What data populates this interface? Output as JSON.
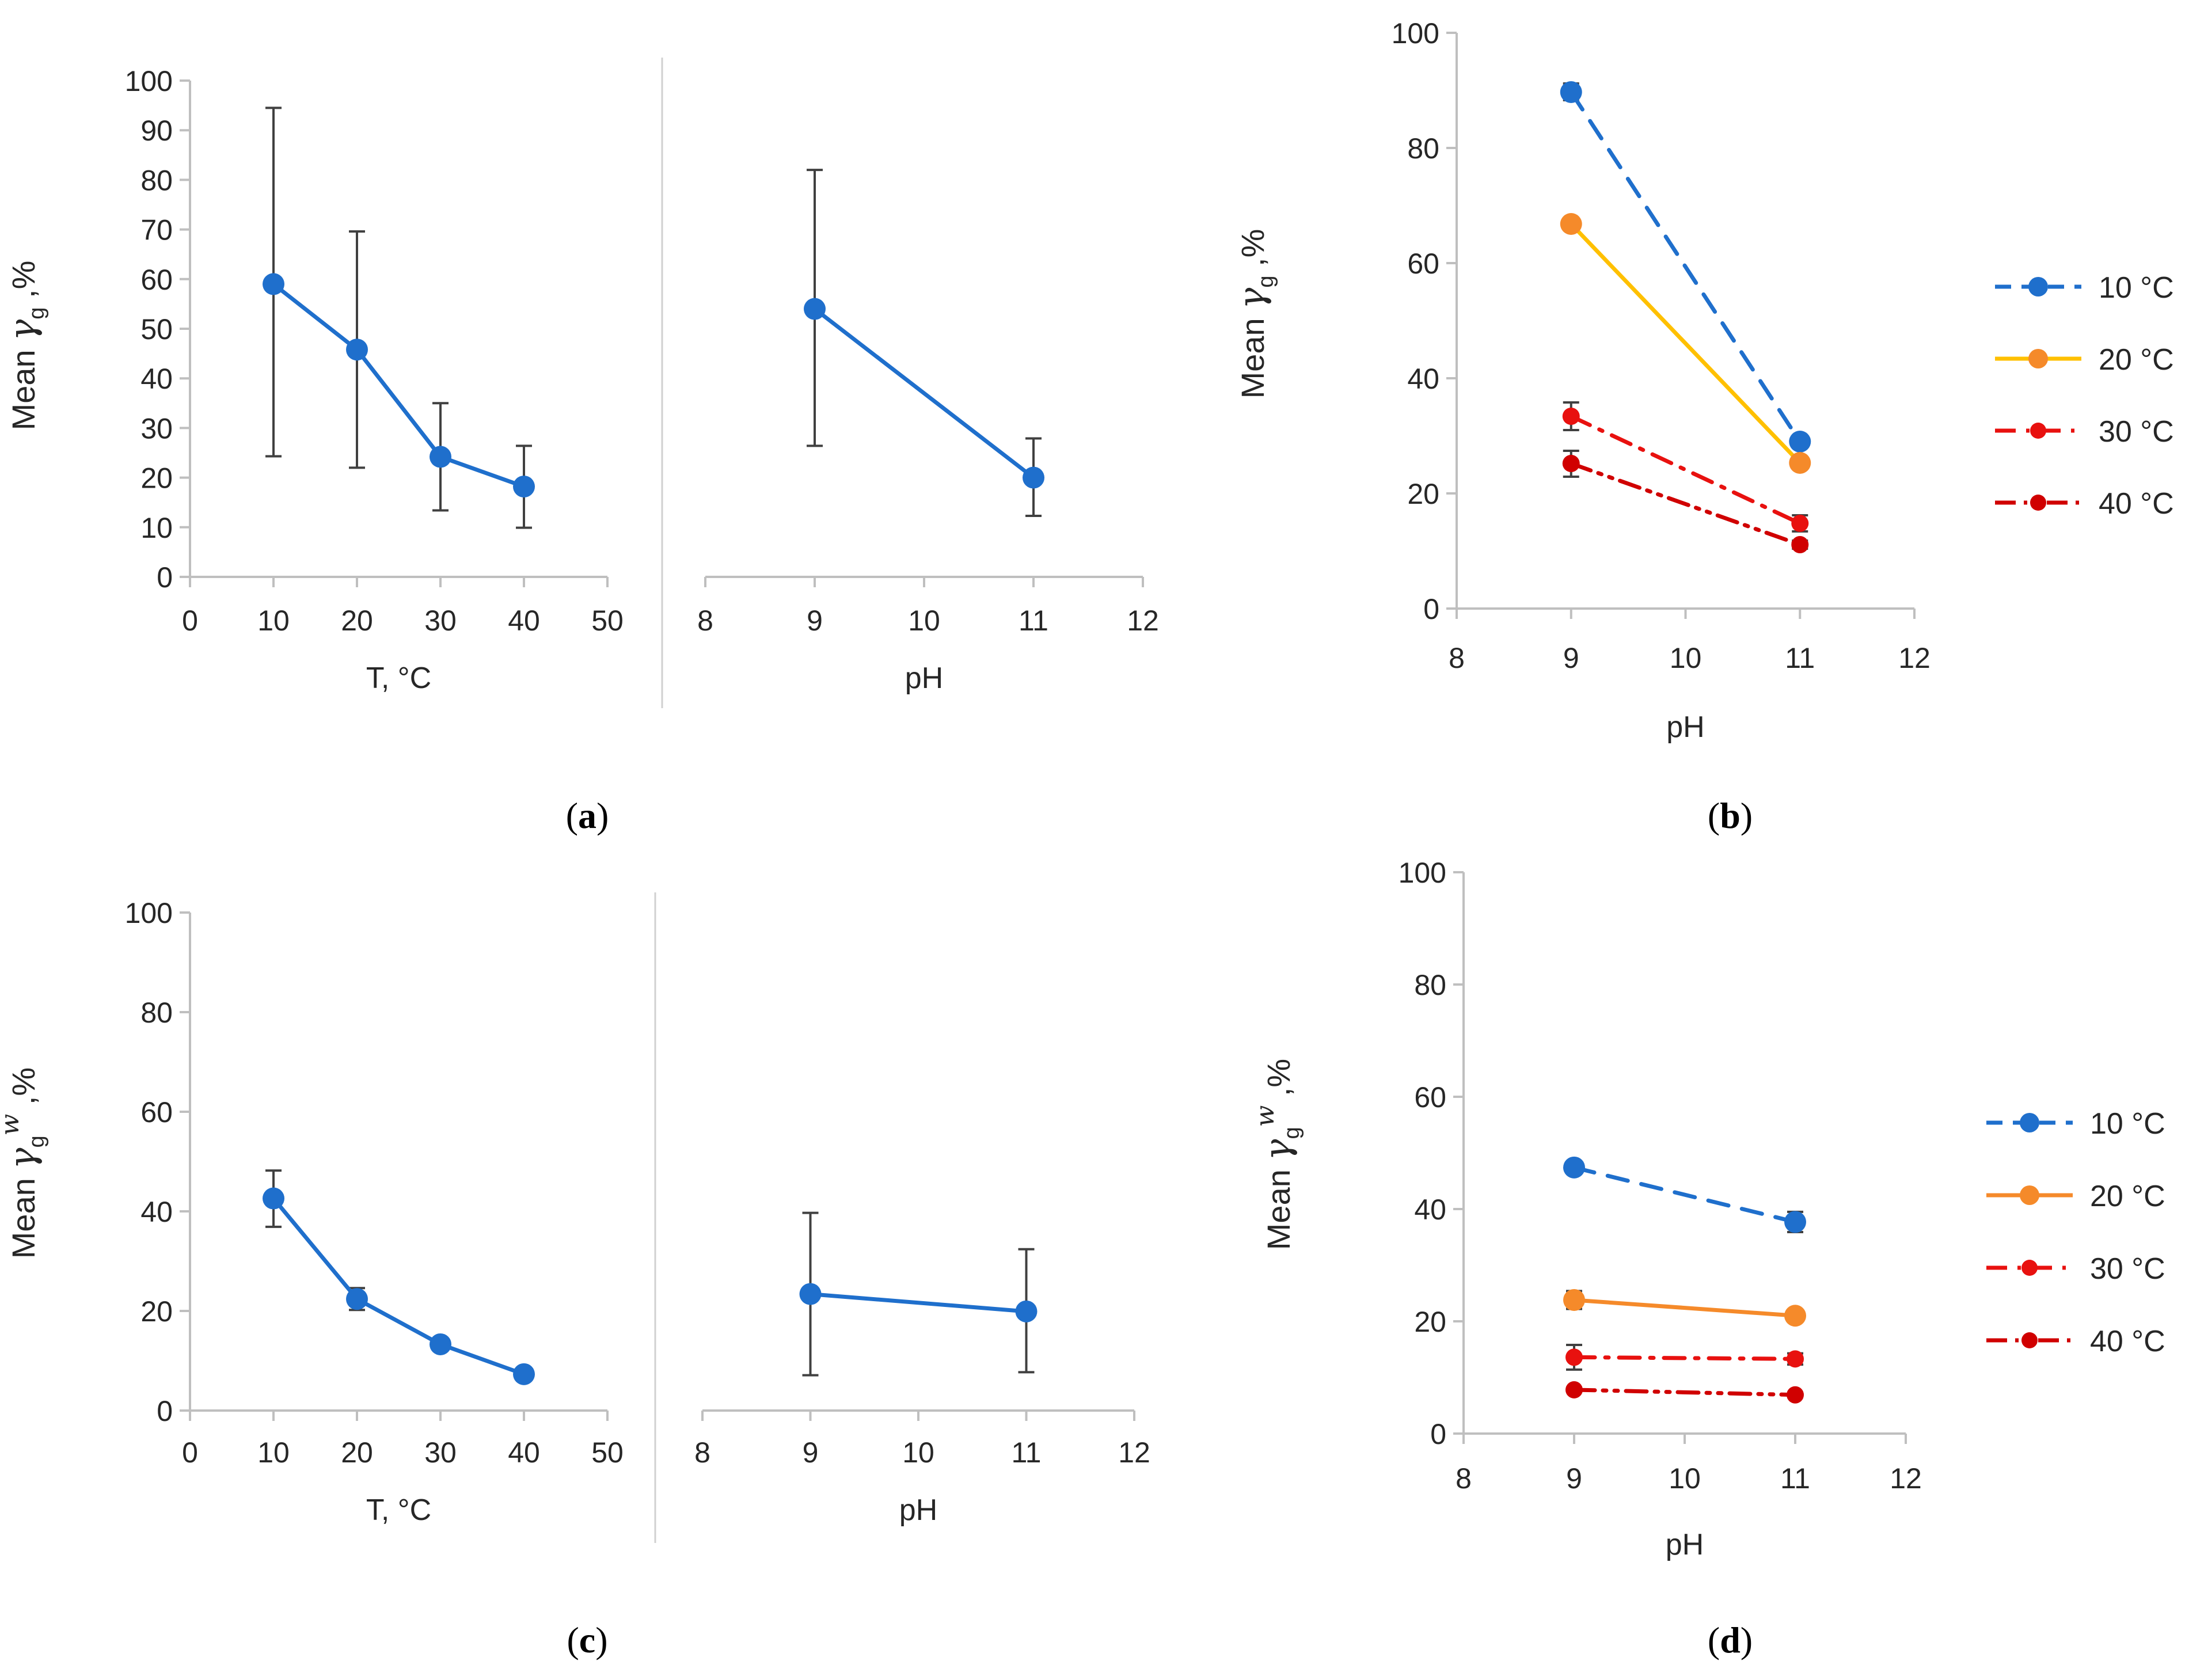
{
  "panels": [
    {
      "id": "a",
      "caption_letter": "a",
      "ylabel_prefix": "Mean ",
      "ylabel_symbol": "γ",
      "ylabel_sub": "g",
      "ylabel_sup": "",
      "ylabel_suffix": " ,%"
    },
    {
      "id": "b",
      "caption_letter": "b",
      "ylabel_prefix": "Mean ",
      "ylabel_symbol": "γ",
      "ylabel_sub": "g",
      "ylabel_sup": "",
      "ylabel_suffix": " ,%"
    },
    {
      "id": "c",
      "caption_letter": "c",
      "ylabel_prefix": "Mean ",
      "ylabel_symbol": "γ",
      "ylabel_sub": "g",
      "ylabel_sup": "w",
      "ylabel_suffix": " ,%"
    },
    {
      "id": "d",
      "caption_letter": "d",
      "ylabel_prefix": "Mean ",
      "ylabel_symbol": "γ",
      "ylabel_sub": "g",
      "ylabel_sup": "w",
      "ylabel_suffix": " ,%"
    }
  ],
  "colors": {
    "blue": "#1f6fcc",
    "yellow": "#ffc000",
    "orange": "#f58a2a",
    "red": "#e8110f",
    "darkred": "#d00000",
    "axis": "#bfbfbf",
    "errorbar": "#404040",
    "text": "#262626"
  },
  "chart_data": [
    {
      "panel": "a",
      "type": "line",
      "xlabel": "T,  °C",
      "ylabel": "Mean γg ,%",
      "xlim": [
        0,
        50
      ],
      "ylim": [
        0,
        100
      ],
      "xticks": [
        0,
        10,
        20,
        30,
        40,
        50
      ],
      "yticks": [
        0,
        10,
        20,
        30,
        40,
        50,
        60,
        70,
        80,
        90,
        100
      ],
      "grid": false,
      "series": [
        {
          "x": [
            10,
            20,
            30,
            40
          ],
          "values": [
            59.0,
            45.8,
            24.2,
            18.2
          ],
          "err_low": [
            24.3,
            22.0,
            13.4,
            9.9
          ],
          "err_high": [
            94.5,
            69.6,
            35.0,
            26.4
          ],
          "color": "#1f6fcc",
          "dash": "solid"
        }
      ]
    },
    {
      "panel": "a",
      "type": "line",
      "xlabel": "pH",
      "ylabel": "",
      "xlim": [
        8,
        12
      ],
      "ylim": [
        0,
        100
      ],
      "xticks": [
        8,
        9,
        10,
        11,
        12
      ],
      "yticks": [],
      "grid": false,
      "series": [
        {
          "x": [
            9,
            11
          ],
          "values": [
            54.0,
            20.0
          ],
          "err_low": [
            26.4,
            12.3
          ],
          "err_high": [
            82.0,
            27.9
          ],
          "color": "#1f6fcc",
          "dash": "solid"
        }
      ]
    },
    {
      "panel": "b",
      "type": "line",
      "xlabel": "pH",
      "ylabel": "Mean γg ,%",
      "xlim": [
        8,
        12
      ],
      "ylim": [
        0,
        100
      ],
      "xticks": [
        8,
        9,
        10,
        11,
        12
      ],
      "yticks": [
        0,
        20,
        40,
        60,
        80,
        100
      ],
      "grid": false,
      "legend_position": "right",
      "series": [
        {
          "name": "10 °C",
          "x": [
            9,
            11
          ],
          "values": [
            89.7,
            29.0
          ],
          "err_low": [
            88.3,
            28.0
          ],
          "err_high": [
            91.2,
            30.0
          ],
          "color": "#1f6fcc",
          "dash": "dash"
        },
        {
          "name": "20 °C",
          "x": [
            9,
            11
          ],
          "values": [
            66.8,
            25.3
          ],
          "err_low": [
            66.2,
            24.9
          ],
          "err_high": [
            67.4,
            25.7
          ],
          "color": "#ffc000",
          "marker": "#f58a2a",
          "dash": "solid"
        },
        {
          "name": "30 °C",
          "x": [
            9,
            11
          ],
          "values": [
            33.4,
            14.8
          ],
          "err_low": [
            31.0,
            13.4
          ],
          "err_high": [
            35.8,
            16.2
          ],
          "color": "#e8110f",
          "dash": "dashdot"
        },
        {
          "name": "40 °C",
          "x": [
            9,
            11
          ],
          "values": [
            25.2,
            11.1
          ],
          "err_low": [
            22.9,
            10.4
          ],
          "err_high": [
            27.4,
            11.8
          ],
          "color": "#d00000",
          "dash": "dashdotdot"
        }
      ]
    },
    {
      "panel": "c",
      "type": "line",
      "xlabel": "T,  °C",
      "ylabel": "Mean γgw ,%",
      "xlim": [
        0,
        50
      ],
      "ylim": [
        0,
        100
      ],
      "xticks": [
        0,
        10,
        20,
        30,
        40,
        50
      ],
      "yticks": [
        0,
        20,
        40,
        60,
        80,
        100
      ],
      "grid": false,
      "series": [
        {
          "x": [
            10,
            20,
            30,
            40
          ],
          "values": [
            42.6,
            22.4,
            13.3,
            7.3
          ],
          "err_low": [
            36.9,
            20.2,
            12.1,
            6.7
          ],
          "err_high": [
            48.2,
            24.6,
            14.5,
            7.9
          ],
          "color": "#1f6fcc",
          "dash": "solid"
        }
      ]
    },
    {
      "panel": "c",
      "type": "line",
      "xlabel": "pH",
      "ylabel": "",
      "xlim": [
        8,
        12
      ],
      "ylim": [
        0,
        100
      ],
      "xticks": [
        8,
        9,
        10,
        11,
        12
      ],
      "yticks": [],
      "grid": false,
      "series": [
        {
          "x": [
            9,
            11
          ],
          "values": [
            23.4,
            19.9
          ],
          "err_low": [
            7.1,
            7.7
          ],
          "err_high": [
            39.7,
            32.4
          ],
          "color": "#1f6fcc",
          "dash": "solid"
        }
      ]
    },
    {
      "panel": "d",
      "type": "line",
      "xlabel": "pH",
      "ylabel": "Mean γgw ,%",
      "xlim": [
        8,
        12
      ],
      "ylim": [
        0,
        100
      ],
      "xticks": [
        8,
        9,
        10,
        11,
        12
      ],
      "yticks": [
        0,
        20,
        40,
        60,
        80,
        100
      ],
      "grid": false,
      "legend_position": "right",
      "series": [
        {
          "name": "10 °C",
          "x": [
            9,
            11
          ],
          "values": [
            47.4,
            37.7
          ],
          "err_low": [
            46.6,
            35.9
          ],
          "err_high": [
            48.2,
            39.5
          ],
          "color": "#1f6fcc",
          "dash": "dash"
        },
        {
          "name": "20 °C",
          "x": [
            9,
            11
          ],
          "values": [
            23.8,
            21.0
          ],
          "err_low": [
            22.2,
            20.4
          ],
          "err_high": [
            25.4,
            21.6
          ],
          "color": "#f58a2a",
          "dash": "solid"
        },
        {
          "name": "30 °C",
          "x": [
            9,
            11
          ],
          "values": [
            13.6,
            13.3
          ],
          "err_low": [
            11.4,
            12.3
          ],
          "err_high": [
            15.8,
            14.3
          ],
          "color": "#e8110f",
          "dash": "dashdot"
        },
        {
          "name": "40 °C",
          "x": [
            9,
            11
          ],
          "values": [
            7.8,
            6.9
          ],
          "err_low": [
            7.4,
            6.5
          ],
          "err_high": [
            8.2,
            7.3
          ],
          "color": "#d00000",
          "dash": "dashdotdot"
        }
      ]
    }
  ]
}
